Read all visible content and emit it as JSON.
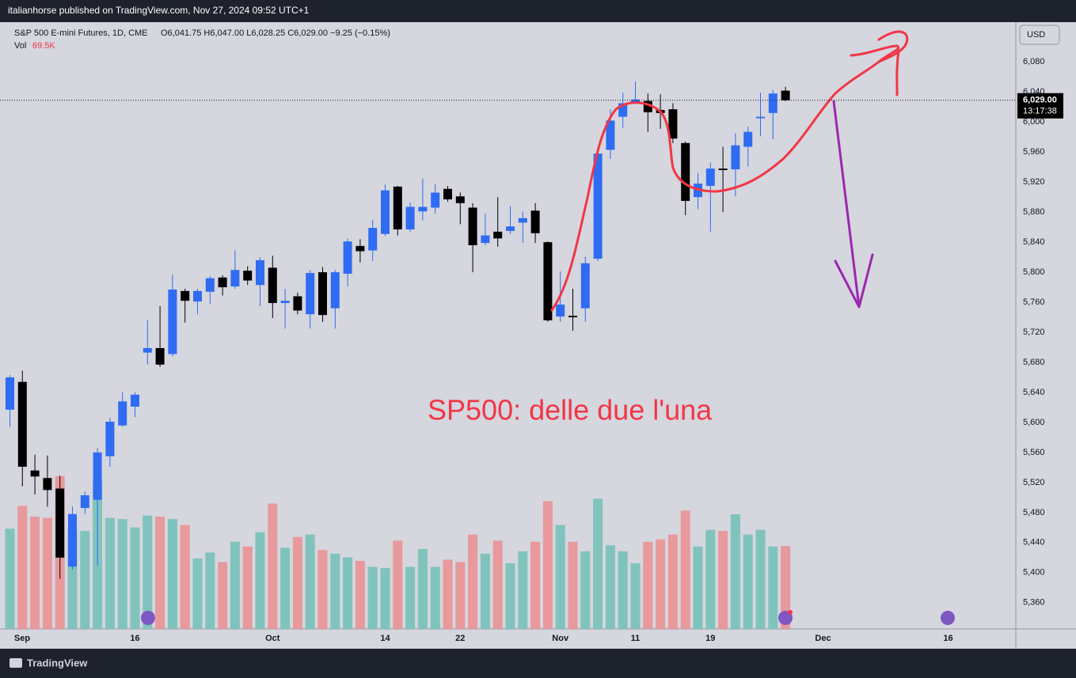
{
  "header": {
    "published": "italianhorse published on TradingView.com, Nov 27, 2024 09:52 UTC+1"
  },
  "chart_data": {
    "type": "candlestick",
    "title": "S&P 500 E-mini Futures, 1D, CME",
    "legend_values": "O6,041.75 H6,047.00 L6,028.25 C6,029.00 −9.25 (−0.15%)",
    "x": [
      "2024-09-02",
      "2024-09-03",
      "2024-09-04",
      "2024-09-05",
      "2024-09-06",
      "2024-09-09",
      "2024-09-10",
      "2024-09-11",
      "2024-09-12",
      "2024-09-13",
      "2024-09-16",
      "2024-09-17",
      "2024-09-18",
      "2024-09-19",
      "2024-09-20",
      "2024-09-23",
      "2024-09-24",
      "2024-09-25",
      "2024-09-26",
      "2024-09-27",
      "2024-09-30",
      "2024-10-01",
      "2024-10-02",
      "2024-10-03",
      "2024-10-04",
      "2024-10-07",
      "2024-10-08",
      "2024-10-09",
      "2024-10-10",
      "2024-10-11",
      "2024-10-14",
      "2024-10-15",
      "2024-10-16",
      "2024-10-17",
      "2024-10-18",
      "2024-10-21",
      "2024-10-22",
      "2024-10-23",
      "2024-10-24",
      "2024-10-25",
      "2024-10-28",
      "2024-10-29",
      "2024-10-30",
      "2024-10-31",
      "2024-11-01",
      "2024-11-04",
      "2024-11-05",
      "2024-11-06",
      "2024-11-07",
      "2024-11-08",
      "2024-11-11",
      "2024-11-12",
      "2024-11-13",
      "2024-11-14",
      "2024-11-15",
      "2024-11-18",
      "2024-11-19",
      "2024-11-20",
      "2024-11-21",
      "2024-11-22",
      "2024-11-25",
      "2024-11-26",
      "2024-11-27"
    ],
    "open": [
      5617,
      5654,
      5536,
      5526,
      5512,
      5408,
      5486,
      5497,
      5555,
      5596,
      5621,
      5693,
      5699,
      5691,
      5775,
      5761,
      5774,
      5793,
      5781,
      5802,
      5783,
      5806,
      5759,
      5768,
      5744,
      5800,
      5752,
      5798,
      5835,
      5829,
      5851,
      5914,
      5857,
      5881,
      5886,
      5911,
      5901,
      5886,
      5839,
      5854,
      5855,
      5866,
      5882,
      5840,
      5741,
      5742,
      5752,
      5818,
      5963,
      6007,
      6027,
      6028,
      6016,
      6017,
      5972,
      5900,
      5915,
      5938,
      5937,
      5967,
      6005,
      6012,
      6041.75
    ],
    "high": [
      5663,
      5669,
      5557,
      5556,
      5529,
      5488,
      5508,
      5566,
      5606,
      5640,
      5640,
      5736,
      5755,
      5797,
      5778,
      5778,
      5795,
      5796,
      5829,
      5808,
      5820,
      5822,
      5778,
      5773,
      5803,
      5807,
      5803,
      5845,
      5844,
      5870,
      5917,
      5915,
      5893,
      5925,
      5917,
      5915,
      5906,
      5892,
      5878,
      5900,
      5888,
      5881,
      5892,
      5841,
      5801,
      5778,
      5821,
      5960,
      6017,
      6039,
      6054,
      6038,
      6037,
      6025,
      5974,
      5932,
      5946,
      5967,
      5985,
      5994,
      6039,
      6043,
      6047
    ],
    "low": [
      5594,
      5515,
      5504,
      5488,
      5392,
      5404,
      5478,
      5409,
      5541,
      5594,
      5607,
      5677,
      5674,
      5688,
      5733,
      5744,
      5758,
      5769,
      5778,
      5783,
      5755,
      5739,
      5725,
      5744,
      5725,
      5734,
      5725,
      5781,
      5813,
      5815,
      5848,
      5849,
      5854,
      5869,
      5878,
      5894,
      5864,
      5800,
      5836,
      5834,
      5851,
      5839,
      5839,
      5734,
      5734,
      5722,
      5734,
      5815,
      5951,
      5992,
      6024,
      5987,
      5991,
      5972,
      5876,
      5884,
      5854,
      5880,
      5901,
      5941,
      5981,
      5977,
      6028.25
    ],
    "close": [
      5660,
      5541,
      5528,
      5510,
      5420,
      5478,
      5503,
      5560,
      5601,
      5628,
      5637,
      5699,
      5677,
      5777,
      5762,
      5775,
      5792,
      5780,
      5803,
      5789,
      5816,
      5759,
      5762,
      5749,
      5799,
      5743,
      5800,
      5841,
      5828,
      5859,
      5909,
      5857,
      5887,
      5887,
      5906,
      5897,
      5892,
      5836,
      5849,
      5845,
      5861,
      5872,
      5852,
      5736,
      5757,
      5740,
      5812,
      5958,
      6002,
      6025,
      6030,
      6013,
      6012,
      5978,
      5895,
      5918,
      5938,
      5936,
      5969,
      5987,
      6007,
      6038,
      6029
    ],
    "up_color": "#2f6cf2",
    "down_color": "#000000",
    "volume": {
      "name": "Vol",
      "value_label": "69.5K",
      "values": [
        84,
        103,
        94,
        93,
        128,
        83,
        82,
        124,
        93,
        92,
        85,
        95,
        94,
        92,
        87,
        59,
        64,
        56,
        73,
        69,
        81,
        105,
        68,
        77,
        79,
        66,
        63,
        60,
        57,
        52,
        51,
        74,
        52,
        67,
        52,
        58,
        56,
        79,
        63,
        74,
        55,
        65,
        73,
        107,
        87,
        73,
        65,
        109,
        70,
        65,
        55,
        73,
        75,
        79,
        99,
        69,
        83,
        82,
        96,
        79,
        83,
        69,
        69.5
      ],
      "up_color": "#80c3bc",
      "down_color": "#e8999b",
      "ylim": [
        0,
        508
      ]
    },
    "ylim": [
      5325,
      6133
    ],
    "yticks": [
      {
        "value": 5360,
        "label": "5,360"
      },
      {
        "value": 5400,
        "label": "5,400"
      },
      {
        "value": 5440,
        "label": "5,440"
      },
      {
        "value": 5480,
        "label": "5,480"
      },
      {
        "value": 5520,
        "label": "5,520"
      },
      {
        "value": 5560,
        "label": "5,560"
      },
      {
        "value": 5600,
        "label": "5,600"
      },
      {
        "value": 5640,
        "label": "5,640"
      },
      {
        "value": 5680,
        "label": "5,680"
      },
      {
        "value": 5720,
        "label": "5,720"
      },
      {
        "value": 5760,
        "label": "5,760"
      },
      {
        "value": 5800,
        "label": "5,800"
      },
      {
        "value": 5840,
        "label": "5,840"
      },
      {
        "value": 5880,
        "label": "5,880"
      },
      {
        "value": 5920,
        "label": "5,920"
      },
      {
        "value": 5960,
        "label": "5,960"
      },
      {
        "value": 6000,
        "label": "6,000"
      },
      {
        "value": 6040,
        "label": "6,040"
      },
      {
        "value": 6080,
        "label": "6,080"
      }
    ],
    "xticks": [
      {
        "value": "2024-09-02",
        "label": "Sep"
      },
      {
        "value": "2024-09-16",
        "label": "16"
      },
      {
        "value": "2024-10-01",
        "label": "Oct"
      },
      {
        "value": "2024-10-14",
        "label": "14"
      },
      {
        "value": "2024-10-22",
        "label": "22"
      },
      {
        "value": "2024-11-01",
        "label": "Nov"
      },
      {
        "value": "2024-11-11",
        "label": "11"
      },
      {
        "value": "2024-11-19",
        "label": "19"
      },
      {
        "value": "2024-12-02",
        "label": "Dec"
      },
      {
        "value": "2024-12-16",
        "label": "16"
      }
    ],
    "grid": false,
    "last_price": {
      "value": 6029,
      "label": "6,029.00"
    },
    "countdown": "13:17:38",
    "currency": "USD",
    "annotation": "SP500: delle due l'una"
  },
  "footer": {
    "brand": "TradingView"
  }
}
